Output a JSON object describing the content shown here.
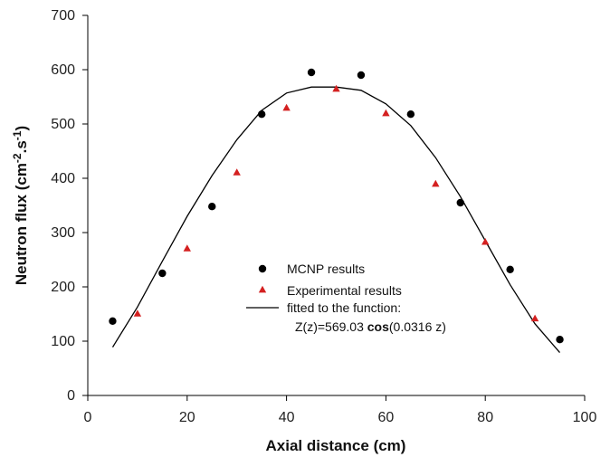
{
  "chart_data": {
    "type": "scatter",
    "xlabel": "Axial distance (cm)",
    "ylabel_main": "Neutron flux (cm",
    "ylabel_sup1": "-2",
    "ylabel_mid": ".s",
    "ylabel_sup2": "-1",
    "ylabel_end": ")",
    "xlim": [
      0,
      100
    ],
    "ylim": [
      0,
      700
    ],
    "xticks": [
      "0",
      "20",
      "40",
      "60",
      "80",
      "100"
    ],
    "yticks": [
      "0",
      "100",
      "200",
      "300",
      "400",
      "500",
      "600",
      "700"
    ],
    "grid": false,
    "legend_position": "center",
    "series": [
      {
        "name": "MCNP results",
        "marker": "circle",
        "color": "#000000",
        "x": [
          5,
          15,
          25,
          35,
          45,
          55,
          65,
          75,
          85,
          95
        ],
        "y": [
          137,
          225,
          348,
          518,
          595,
          590,
          518,
          355,
          232,
          103
        ]
      },
      {
        "name": "Experimental results",
        "marker": "triangle",
        "color": "#d42020",
        "x": [
          10,
          20,
          30,
          40,
          50,
          60,
          70,
          80,
          90
        ],
        "y": [
          151,
          271,
          411,
          530,
          565,
          520,
          390,
          283,
          142
        ]
      },
      {
        "name": "fitted to the function:",
        "marker": "line",
        "color": "#000000",
        "x": [
          5,
          10,
          15,
          20,
          25,
          30,
          35,
          40,
          45,
          50,
          55,
          60,
          65,
          70,
          75,
          80,
          85,
          90,
          95
        ],
        "y": [
          89,
          163,
          247,
          330,
          405,
          471,
          525,
          557,
          568,
          568,
          562,
          537,
          497,
          438,
          366,
          285,
          204,
          132,
          79
        ]
      }
    ],
    "legend_equation_prefix": "Z(z)=569.03 ",
    "legend_equation_bold": "cos",
    "legend_equation_suffix": "(0.0316 z)"
  }
}
